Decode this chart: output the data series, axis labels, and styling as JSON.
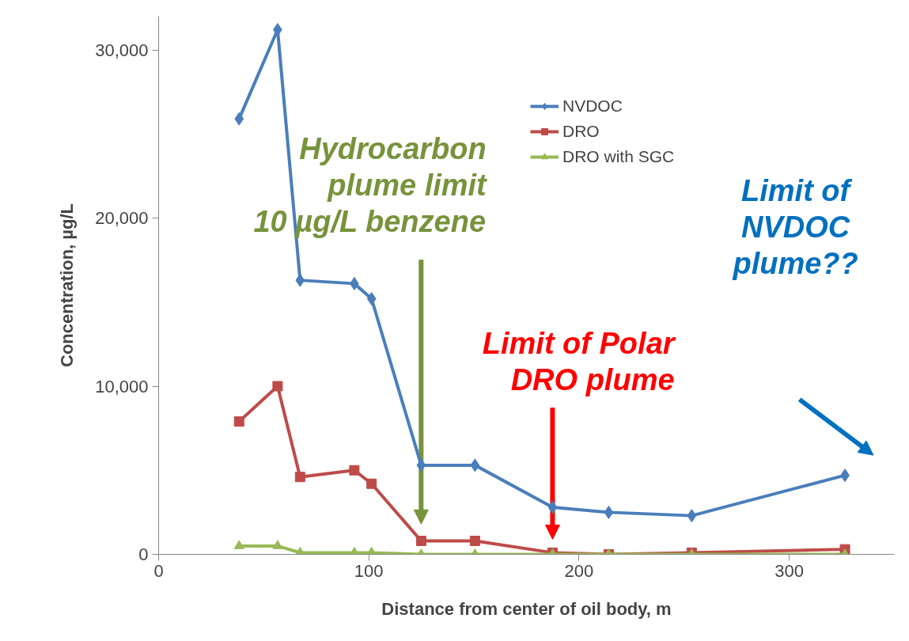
{
  "chart_data": {
    "type": "line",
    "xlabel": "Distance from center of oil body, m",
    "ylabel": "Concentration, µg/L",
    "xlim": [
      0,
      350
    ],
    "xticks": [
      0,
      100,
      200,
      300
    ],
    "ylim": [
      0,
      32000
    ],
    "yticks": [
      0,
      {
        "value": 10000,
        "label": "10,000"
      },
      {
        "value": 20000,
        "label": "20,000"
      },
      {
        "value": 30000,
        "label": "30,000"
      }
    ],
    "x": [
      38.3,
      56.6,
      67.3,
      93.1,
      101.3,
      124.9,
      150.5,
      187.4,
      214.1,
      253.6,
      326.5
    ],
    "series": [
      {
        "name": "NVDOC",
        "color": "#4a7ebb",
        "marker": "diamond",
        "values": [
          25900,
          31200,
          16300,
          16100,
          15200,
          5300,
          5300,
          2800,
          2500,
          2300,
          4700
        ]
      },
      {
        "name": "DRO",
        "color": "#be4b48",
        "marker": "square",
        "values": [
          7900,
          10000,
          4600,
          5000,
          4200,
          800,
          800,
          100,
          0,
          100,
          300
        ]
      },
      {
        "name": "DRO with SGC",
        "color": "#98b954",
        "marker": "triangle",
        "values": [
          500,
          500,
          100,
          100,
          100,
          0,
          0,
          0,
          0,
          0,
          0
        ]
      }
    ],
    "legend": "top right",
    "grid": false,
    "annotations": [
      "Hydrocarbon\nplume limit\n10 µg/L benzene",
      "Limit of Polar\nDRO plume",
      "Limit of\nNVDOC\nplume??"
    ]
  }
}
